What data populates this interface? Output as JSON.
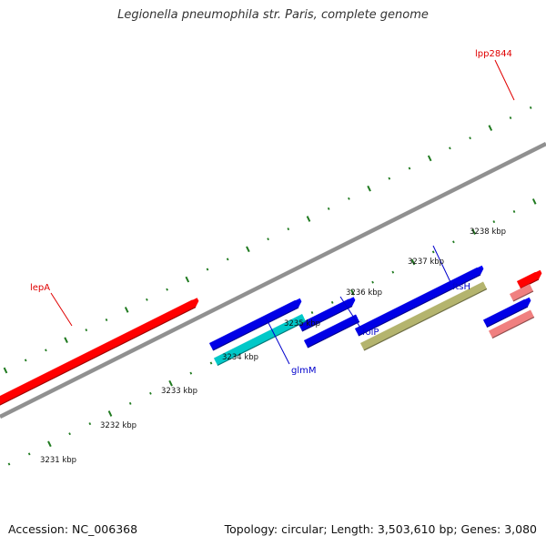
{
  "title": "Legionella pneumophila str. Paris, complete genome",
  "footer": {
    "accession": "Accession: NC_006368",
    "summary": "Topology: circular; Length: 3,503,610 bp; Genes: 3,080"
  },
  "colors": {
    "red": "#ff0000",
    "pink": "#f08080",
    "blue": "#0000e6",
    "cyan": "#00c8c8",
    "olive": "#b4b46e",
    "tick": "#1f7a1f",
    "backbone": "#909090"
  },
  "axis_labels": [
    {
      "text": "3231 kbp",
      "kbp": 3231
    },
    {
      "text": "3232 kbp",
      "kbp": 3232
    },
    {
      "text": "3233 kbp",
      "kbp": 3233
    },
    {
      "text": "3234 kbp",
      "kbp": 3234
    },
    {
      "text": "3235 kbp",
      "kbp": 3235
    },
    {
      "text": "3236 kbp",
      "kbp": 3236
    },
    {
      "text": "3237 kbp",
      "kbp": 3237
    },
    {
      "text": "3238 kbp",
      "kbp": 3238
    }
  ],
  "gene_labels": [
    {
      "name": "lepA",
      "color": "#e00000"
    },
    {
      "name": "lpp2844",
      "color": "#e00000"
    },
    {
      "name": "glmM",
      "color": "#0000cc"
    },
    {
      "name": "folP",
      "color": "#0000cc"
    },
    {
      "name": "ftsH",
      "color": "#0000cc"
    }
  ],
  "features": [
    {
      "gene": "lepA",
      "strand": "+",
      "color": "red"
    },
    {
      "gene": "",
      "strand": "+",
      "color": "blue"
    },
    {
      "gene": "",
      "strand": "+",
      "color": "blue"
    },
    {
      "gene": "",
      "strand": "+",
      "color": "blue"
    },
    {
      "gene": "",
      "strand": "+",
      "color": "blue"
    },
    {
      "gene": "lpp2844",
      "strand": "+",
      "color": "red"
    },
    {
      "gene": "glmM",
      "strand": "+",
      "color": "cyan"
    },
    {
      "gene": "folP",
      "strand": "+",
      "color": "blue"
    },
    {
      "gene": "ftsH",
      "strand": "+",
      "color": "olive"
    },
    {
      "gene": "",
      "strand": "+",
      "color": "pink"
    },
    {
      "gene": "",
      "strand": "+",
      "color": "pink"
    }
  ]
}
